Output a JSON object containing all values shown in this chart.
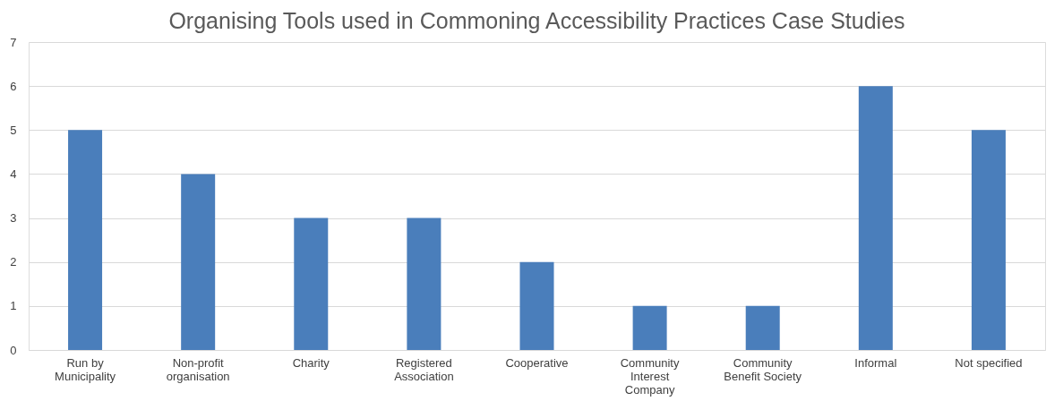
{
  "chart_data": {
    "type": "bar",
    "title": "Organising Tools used in Commoning Accessibility Practices Case Studies",
    "categories": [
      "Run by Municipality",
      "Non-profit organisation",
      "Charity",
      "Registered Association",
      "Cooperative",
      "Community Interest Company",
      "Community Benefit Society",
      "Informal",
      "Not specified"
    ],
    "values": [
      5,
      4,
      3,
      3,
      2,
      1,
      1,
      6,
      5
    ],
    "color": "#4a7ebb",
    "ylim": [
      0,
      7
    ],
    "yticks": [
      0,
      1,
      2,
      3,
      4,
      5,
      6,
      7
    ],
    "grid": "y"
  }
}
